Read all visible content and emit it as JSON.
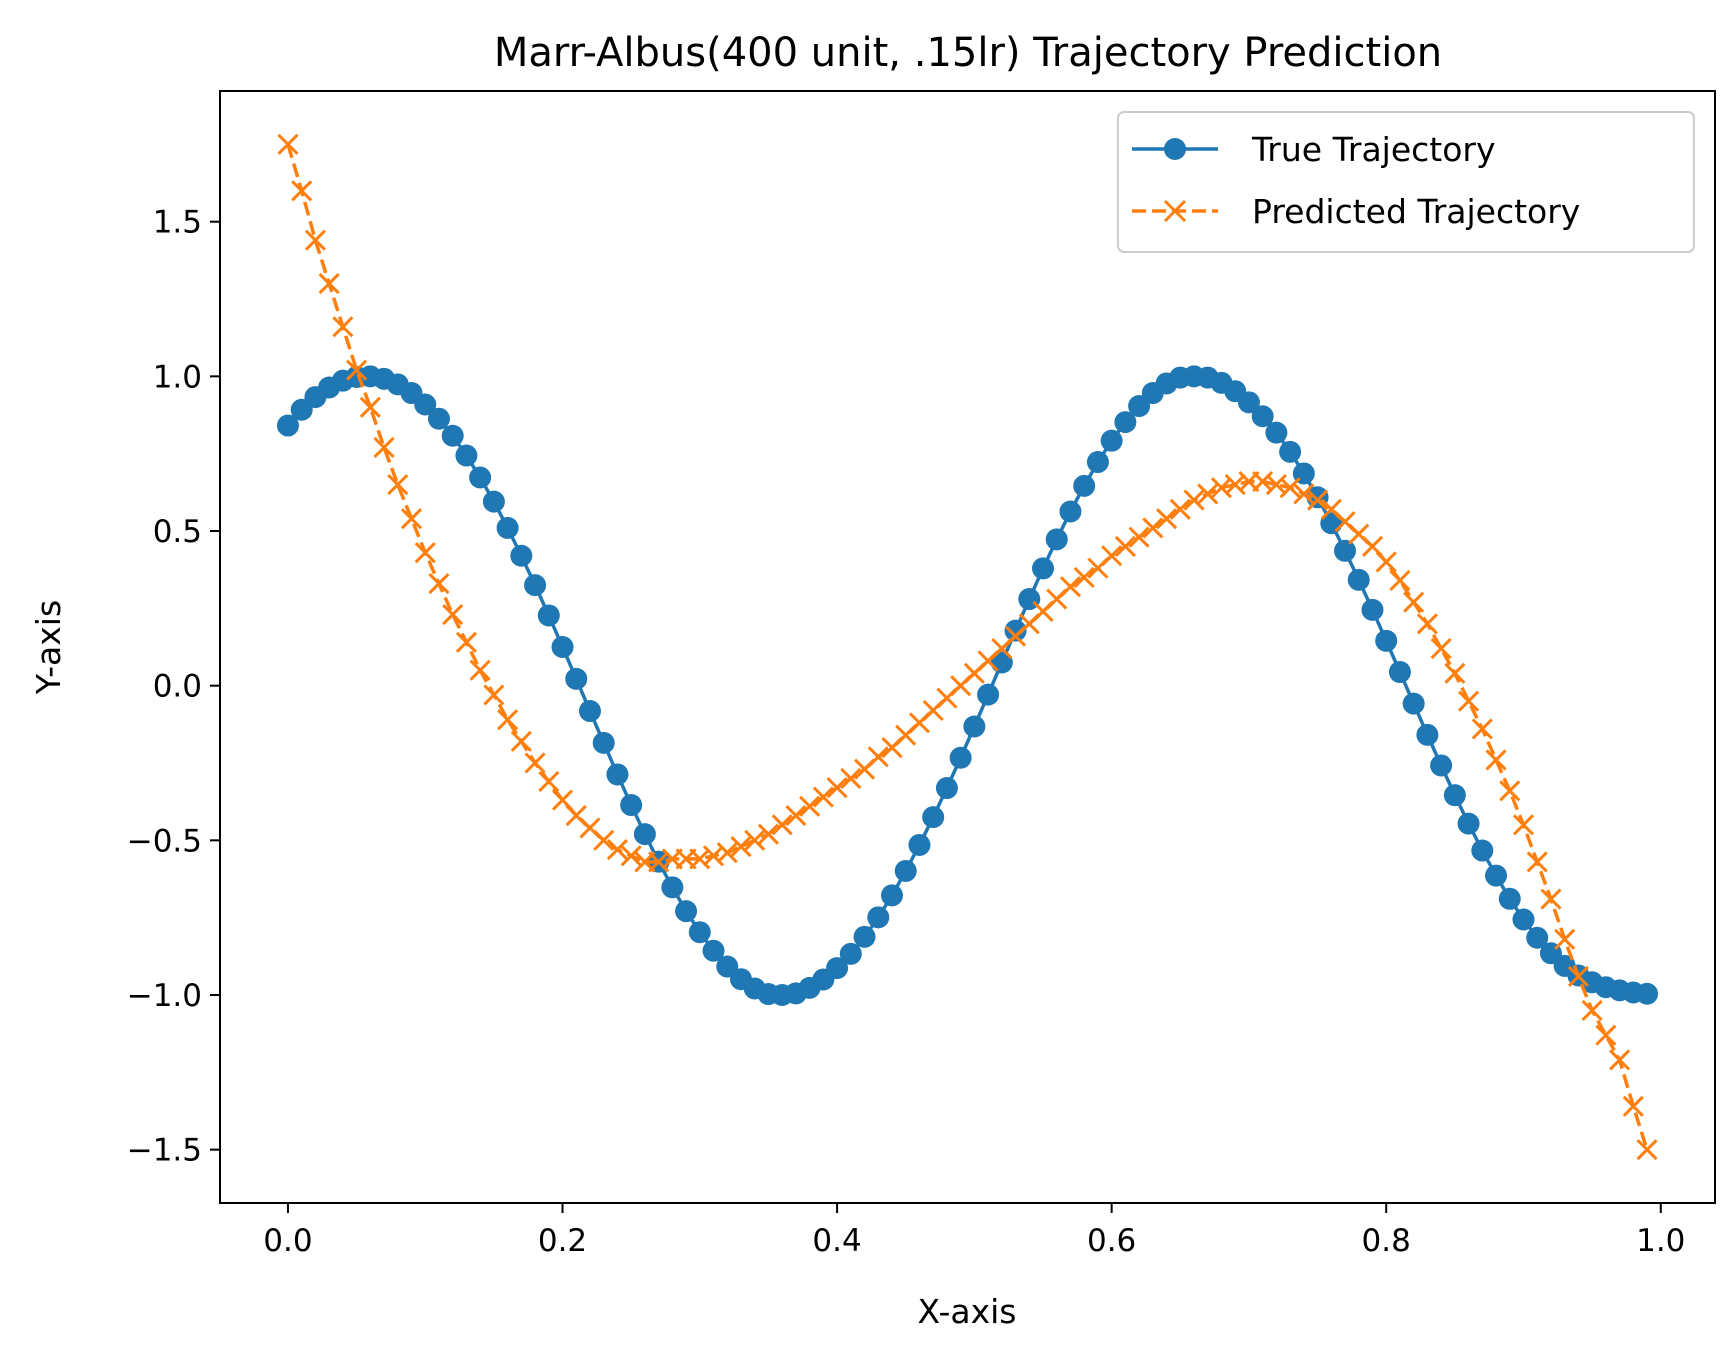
{
  "chart_data": {
    "type": "line",
    "title": "Marr-Albus(400 unit, .15lr) Trajectory Prediction",
    "xlabel": "X-axis",
    "ylabel": "Y-axis",
    "xlim": [
      -0.0495,
      1.0395
    ],
    "ylim": [
      -1.6725,
      1.9225
    ],
    "xticks": [
      0.0,
      0.2,
      0.4,
      0.6,
      0.8,
      1.0
    ],
    "xtick_labels": [
      "0.0",
      "0.2",
      "0.4",
      "0.6",
      "0.8",
      "1.0"
    ],
    "yticks": [
      -1.5,
      -1.0,
      -0.5,
      0.0,
      0.5,
      1.0,
      1.5
    ],
    "ytick_labels": [
      "−1.5",
      "−1.0",
      "−0.5",
      "0.0",
      "0.5",
      "1.0",
      "1.5"
    ],
    "grid": false,
    "legend_position": "top-right",
    "x": [
      0.0,
      0.01,
      0.02,
      0.03,
      0.04,
      0.05,
      0.06,
      0.07,
      0.08,
      0.09,
      0.1,
      0.11,
      0.12,
      0.13,
      0.14,
      0.15,
      0.16,
      0.17,
      0.18,
      0.19,
      0.2,
      0.21,
      0.22,
      0.23,
      0.24,
      0.25,
      0.26,
      0.27,
      0.28,
      0.29,
      0.3,
      0.31,
      0.32,
      0.33,
      0.34,
      0.35,
      0.36,
      0.37,
      0.38,
      0.39,
      0.4,
      0.41,
      0.42,
      0.43,
      0.44,
      0.45,
      0.46,
      0.47,
      0.48,
      0.49,
      0.5,
      0.51,
      0.52,
      0.53,
      0.54,
      0.55,
      0.56,
      0.57,
      0.58,
      0.59,
      0.6,
      0.61,
      0.62,
      0.63,
      0.64,
      0.65,
      0.66,
      0.67,
      0.68,
      0.69,
      0.7,
      0.71,
      0.72,
      0.73,
      0.74,
      0.75,
      0.76,
      0.77,
      0.78,
      0.79,
      0.8,
      0.81,
      0.82,
      0.83,
      0.84,
      0.85,
      0.86,
      0.87,
      0.88,
      0.89,
      0.9,
      0.91,
      0.92,
      0.93,
      0.94,
      0.95,
      0.96,
      0.97,
      0.98,
      0.99
    ],
    "series": [
      {
        "name": "True Trajectory",
        "color": "#1f77b4",
        "line_style": "solid",
        "marker": "circle",
        "values": [
          0.841,
          0.892,
          0.933,
          0.964,
          0.986,
          0.998,
          1.0,
          0.992,
          0.974,
          0.946,
          0.909,
          0.863,
          0.808,
          0.744,
          0.673,
          0.595,
          0.51,
          0.42,
          0.325,
          0.227,
          0.125,
          0.022,
          -0.082,
          -0.185,
          -0.287,
          -0.386,
          -0.48,
          -0.569,
          -0.652,
          -0.729,
          -0.797,
          -0.857,
          -0.908,
          -0.949,
          -0.979,
          -0.997,
          -1.0,
          -0.995,
          -0.977,
          -0.95,
          -0.913,
          -0.867,
          -0.812,
          -0.749,
          -0.678,
          -0.599,
          -0.515,
          -0.425,
          -0.331,
          -0.233,
          -0.132,
          -0.029,
          0.075,
          0.178,
          0.28,
          0.379,
          0.473,
          0.563,
          0.646,
          0.723,
          0.792,
          0.852,
          0.904,
          0.946,
          0.977,
          0.996,
          1.0,
          0.996,
          0.979,
          0.952,
          0.916,
          0.871,
          0.818,
          0.756,
          0.686,
          0.609,
          0.525,
          0.436,
          0.342,
          0.245,
          0.145,
          0.044,
          -0.058,
          -0.159,
          -0.258,
          -0.354,
          -0.446,
          -0.533,
          -0.614,
          -0.689,
          -0.756,
          -0.815,
          -0.865,
          -0.906,
          -0.937,
          -0.959,
          -0.975,
          -0.985,
          -0.992,
          -0.996
        ]
      },
      {
        "name": "Predicted Trajectory",
        "color": "#ff7f0e",
        "line_style": "dashed",
        "marker": "x",
        "values": [
          1.75,
          1.6,
          1.44,
          1.3,
          1.16,
          1.02,
          0.9,
          0.77,
          0.65,
          0.54,
          0.43,
          0.33,
          0.23,
          0.14,
          0.05,
          -0.03,
          -0.11,
          -0.18,
          -0.25,
          -0.31,
          -0.37,
          -0.42,
          -0.46,
          -0.5,
          -0.53,
          -0.55,
          -0.57,
          -0.57,
          -0.56,
          -0.56,
          -0.56,
          -0.55,
          -0.54,
          -0.52,
          -0.5,
          -0.48,
          -0.45,
          -0.42,
          -0.39,
          -0.36,
          -0.33,
          -0.3,
          -0.27,
          -0.23,
          -0.2,
          -0.16,
          -0.12,
          -0.08,
          -0.04,
          0.0,
          0.04,
          0.08,
          0.12,
          0.16,
          0.2,
          0.24,
          0.28,
          0.32,
          0.35,
          0.38,
          0.42,
          0.45,
          0.48,
          0.51,
          0.54,
          0.57,
          0.6,
          0.62,
          0.64,
          0.65,
          0.66,
          0.66,
          0.65,
          0.64,
          0.62,
          0.6,
          0.57,
          0.53,
          0.49,
          0.45,
          0.4,
          0.34,
          0.27,
          0.2,
          0.12,
          0.04,
          -0.05,
          -0.14,
          -0.24,
          -0.34,
          -0.45,
          -0.57,
          -0.69,
          -0.82,
          -0.94,
          -1.05,
          -1.13,
          -1.21,
          -1.36,
          -1.5
        ]
      }
    ]
  }
}
